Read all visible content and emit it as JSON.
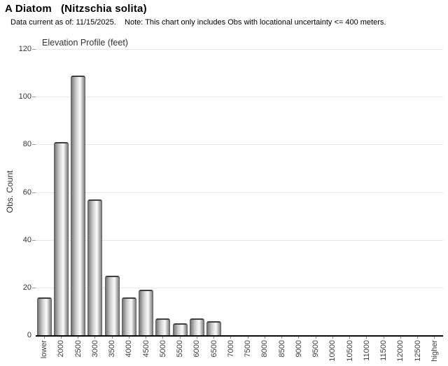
{
  "header": {
    "title": "A Diatom   (Nitzschia solita)",
    "subtitle": "Data current as of: 11/15/2025.    Note: This chart only includes Obs with locational uncertainty <= 400 meters."
  },
  "chart_data": {
    "type": "bar",
    "title": "Elevation Profile (feet)",
    "xlabel": "",
    "ylabel": "Obs. Count",
    "categories": [
      "lower",
      "2000",
      "2500",
      "3000",
      "3500",
      "4000",
      "4500",
      "5000",
      "5500",
      "6000",
      "6500",
      "7000",
      "7500",
      "8000",
      "8500",
      "9000",
      "9500",
      "10000",
      "10500",
      "11000",
      "11500",
      "12000",
      "12500",
      "higher"
    ],
    "values": [
      16,
      81,
      109,
      57,
      25,
      16,
      19,
      7,
      5,
      7,
      6,
      0,
      0,
      0,
      0,
      0,
      0,
      0,
      0,
      0,
      0,
      0,
      0,
      0
    ],
    "ylim": [
      0,
      120
    ],
    "yticks": [
      0,
      20,
      40,
      60,
      80,
      100,
      120
    ],
    "grid": true,
    "legend": "none",
    "colors": {
      "bar_edge": "#6f6f6f",
      "bar_highlight": "#f8f8f8",
      "bar_cap": "#3f3f3f",
      "gridline": "#e7e7e7",
      "axis": "#0a0a0a",
      "tick_text": "#3d3d3d",
      "background": "#ffffff"
    }
  }
}
